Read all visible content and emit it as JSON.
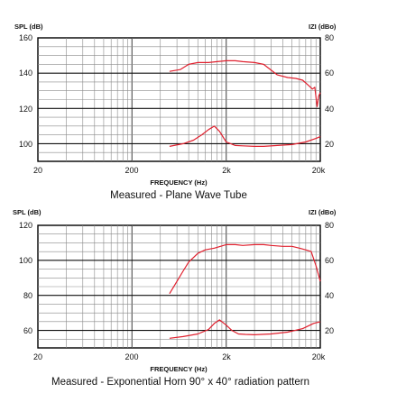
{
  "chart_data": [
    {
      "type": "line",
      "title": "Measured - Plane Wave Tube",
      "xlabel": "FREQUENCY (Hz)",
      "ylabel_left": "SPL (dB)",
      "ylabel_right": "IZI (dBo)",
      "x_scale": "log",
      "xlim": [
        20,
        20000
      ],
      "ylim_left": [
        90,
        160
      ],
      "ylim_right": [
        10,
        80
      ],
      "grid": true,
      "x_ticks": [
        "20",
        "200",
        "2k",
        "20k"
      ],
      "y_ticks_left": [
        "160",
        "140",
        "120",
        "100"
      ],
      "y_ticks_right": [
        "80",
        "60",
        "40",
        "20"
      ],
      "series": [
        {
          "axis": "left",
          "color": "#e0202e",
          "x": [
            500,
            650,
            800,
            1000,
            1300,
            1600,
            2000,
            2500,
            3000,
            4000,
            5000,
            7000,
            9000,
            11000,
            13000,
            15000,
            16500,
            17500,
            18500,
            19200,
            20000
          ],
          "y": [
            141,
            142,
            145,
            146,
            146,
            146.5,
            147,
            147,
            146.5,
            146,
            145,
            139,
            137.5,
            137,
            136,
            133,
            131,
            132,
            121,
            127,
            129
          ]
        },
        {
          "axis": "right",
          "color": "#e0202e",
          "x": [
            500,
            700,
            900,
            1100,
            1300,
            1500,
            1700,
            2000,
            2500,
            3000,
            4000,
            5000,
            7000,
            10000,
            14000,
            18000,
            20000
          ],
          "y": [
            18.5,
            20,
            22,
            25,
            28,
            30,
            27,
            21,
            19,
            18.8,
            18.5,
            18.5,
            19,
            19.5,
            21,
            23,
            24
          ]
        }
      ]
    },
    {
      "type": "line",
      "title": "Measured - Exponential Horn 90° x 40° radiation pattern",
      "xlabel": "FREQUENCY (Hz)",
      "ylabel_left": "SPL (dB)",
      "ylabel_right": "IZI (dBo)",
      "x_scale": "log",
      "xlim": [
        20,
        20000
      ],
      "ylim_left": [
        50,
        120
      ],
      "ylim_right": [
        10,
        80
      ],
      "grid": true,
      "x_ticks": [
        "20",
        "200",
        "2k",
        "20k"
      ],
      "y_ticks_left": [
        "120",
        "100",
        "80",
        "60"
      ],
      "y_ticks_right": [
        "80",
        "60",
        "40",
        "20"
      ],
      "series": [
        {
          "axis": "left",
          "color": "#e0202e",
          "x": [
            500,
            600,
            700,
            800,
            1000,
            1200,
            1500,
            2000,
            2500,
            3000,
            4000,
            5000,
            6000,
            8000,
            10000,
            12000,
            14000,
            16000,
            18000,
            20000
          ],
          "y": [
            81,
            88,
            94,
            99,
            104,
            106,
            107,
            109,
            109,
            108.5,
            109,
            109,
            108.5,
            108,
            108,
            107,
            106,
            105,
            97,
            88
          ]
        },
        {
          "axis": "right",
          "color": "#e0202e",
          "x": [
            500,
            700,
            1000,
            1300,
            1500,
            1700,
            2000,
            2300,
            2700,
            3200,
            4000,
            6000,
            9000,
            13000,
            17000,
            20000
          ],
          "y": [
            15.5,
            16.5,
            18,
            20.5,
            24,
            26,
            23,
            20,
            18,
            17.7,
            17.5,
            18,
            19,
            21,
            24,
            25
          ]
        }
      ]
    }
  ]
}
